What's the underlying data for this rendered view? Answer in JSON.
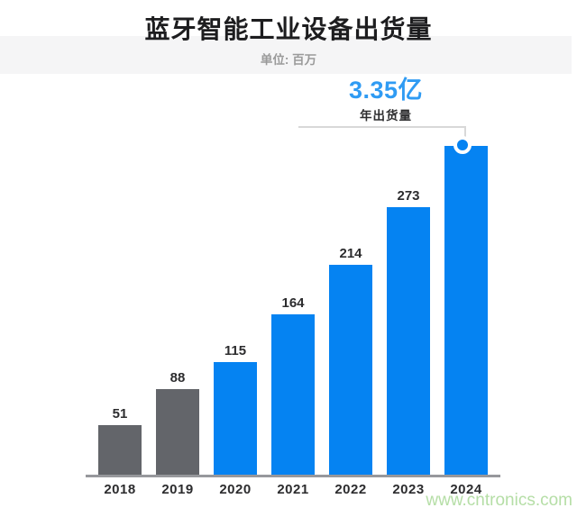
{
  "header": {
    "title": "蓝牙智能工业设备出货量",
    "subtitle": "单位: 百万"
  },
  "callout": {
    "headline": "3.35亿",
    "label": "年出货量"
  },
  "watermark": "www.cntronics.com",
  "colors": {
    "bar_blue": "#0583f2",
    "bar_gray": "#63656a",
    "headline_blue": "#2f9bf3",
    "title_dark": "#1d1d1f",
    "subtitle_gray": "#9a9a9a",
    "label_dark": "#2c2c2e",
    "axis_gray": "#97989c",
    "bracket_gray": "#d8d8d8",
    "band_gray": "#f5f5f6",
    "watermark_green": "#b5dea6"
  },
  "chart_data": {
    "type": "bar",
    "title": "蓝牙智能工业设备出货量",
    "subtitle": "单位: 百万",
    "unit": "百万 (millions)",
    "categories": [
      "2018",
      "2019",
      "2020",
      "2021",
      "2022",
      "2023",
      "2024"
    ],
    "values": [
      51,
      88,
      115,
      164,
      214,
      273,
      335
    ],
    "value_labels": [
      "51",
      "88",
      "115",
      "164",
      "214",
      "273",
      ""
    ],
    "bar_colors": [
      "gray",
      "gray",
      "blue",
      "blue",
      "blue",
      "blue",
      "blue"
    ],
    "annotation": {
      "text": "3.35亿",
      "sub": "年出货量",
      "applies_to": "2024",
      "marker": "blue-circle"
    },
    "xlabel": "",
    "ylabel": "",
    "ylim": [
      0,
      335
    ],
    "grid": false,
    "legend": false
  }
}
